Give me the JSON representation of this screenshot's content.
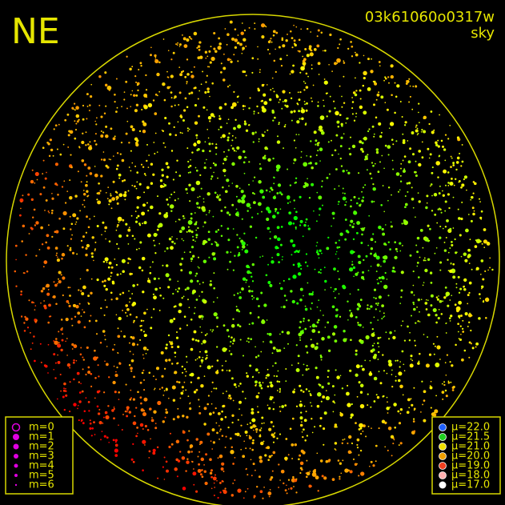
{
  "header": {
    "corner_label": "NE",
    "image_id": "03k61060o0317w",
    "image_type": "sky"
  },
  "magnitude_legend": {
    "items": [
      "m=0",
      "m=1",
      "m=2",
      "m=3",
      "m=4",
      "m=5",
      "m=6"
    ]
  },
  "brightness_legend": {
    "items": [
      "μ=22.0",
      "μ=21.5",
      "μ=21.0",
      "μ=20.0",
      "μ=19.0",
      "μ=18.0",
      "μ=17.0"
    ]
  }
}
